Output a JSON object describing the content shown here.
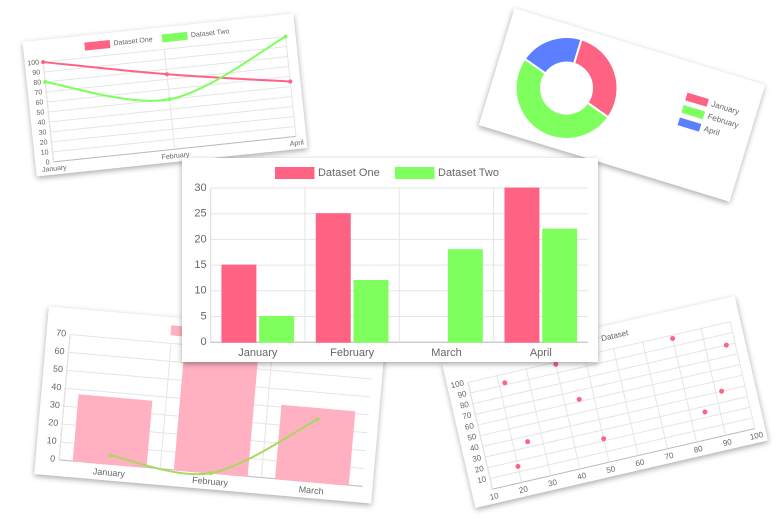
{
  "chart_data": [
    {
      "type": "line",
      "categories": [
        "January",
        "February",
        "April"
      ],
      "series": [
        {
          "name": "Dataset One",
          "color": "#ff6384",
          "values": [
            100,
            75,
            55
          ]
        },
        {
          "name": "Dataset Two",
          "color": "#7fff5e",
          "values": [
            80,
            50,
            100
          ]
        }
      ],
      "ylim": [
        0,
        100
      ],
      "yticks": [
        0,
        10,
        20,
        30,
        40,
        50,
        60,
        70,
        80,
        90,
        100
      ],
      "grid": true,
      "smooth": true
    },
    {
      "type": "doughnut",
      "categories": [
        "January",
        "February",
        "April"
      ],
      "values": [
        30,
        50,
        20
      ],
      "colors": [
        "#ff6384",
        "#7fff5e",
        "#5b7fff"
      ],
      "legend": "right"
    },
    {
      "type": "bar",
      "categories": [
        "January",
        "February",
        "March",
        "April"
      ],
      "series": [
        {
          "name": "Dataset One",
          "color": "#ff6384",
          "values": [
            15,
            25,
            0,
            30
          ]
        },
        {
          "name": "Dataset Two",
          "color": "#7fff5e",
          "values": [
            5,
            12,
            18,
            22
          ]
        }
      ],
      "ylim": [
        0,
        30
      ],
      "yticks": [
        0,
        5,
        10,
        15,
        20,
        25,
        30
      ],
      "grid": true
    },
    {
      "type": "bar",
      "categories": [
        "January",
        "February",
        "March"
      ],
      "series": [
        {
          "name": "Bar Dataset",
          "type": "bar",
          "color": "#ffb1c1",
          "values": [
            37,
            75,
            41
          ]
        },
        {
          "type": "line",
          "color": "#a6d95e",
          "values": [
            5,
            0,
            35
          ]
        }
      ],
      "ylim": [
        0,
        70
      ],
      "yticks": [
        0,
        10,
        20,
        30,
        40,
        50,
        60,
        70
      ],
      "grid": true
    },
    {
      "type": "scatter",
      "x": [
        20,
        25,
        22,
        40,
        45,
        50,
        52,
        80,
        85,
        92,
        97
      ],
      "series": [
        {
          "name": "Scatter Dataset",
          "color": "#ff6384",
          "values": [
            15,
            35,
            92,
            98,
            62,
            22,
            95,
            97,
            25,
            40,
            80
          ]
        }
      ],
      "xlim": [
        10,
        100
      ],
      "xticks": [
        10,
        20,
        30,
        40,
        50,
        60,
        70,
        80,
        90,
        100
      ],
      "ylim": [
        0,
        100
      ],
      "yticks": [
        10,
        20,
        30,
        40,
        50,
        60,
        70,
        80,
        90,
        100
      ],
      "grid": true
    }
  ]
}
